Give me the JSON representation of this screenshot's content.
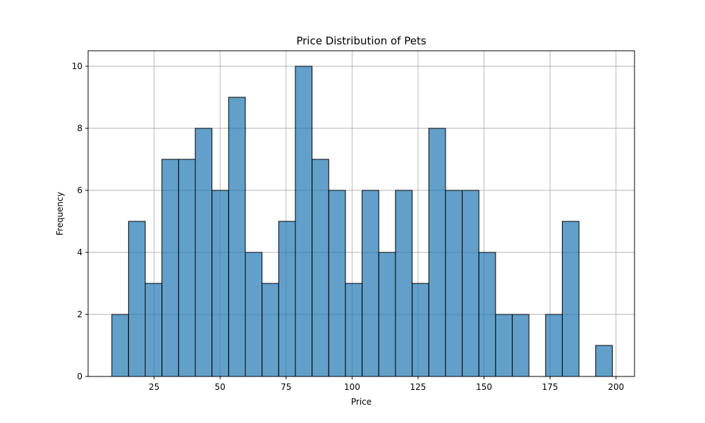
{
  "chart_data": {
    "type": "bar",
    "title": "Price Distribution of Pets",
    "xlabel": "Price",
    "ylabel": "Frequency",
    "xlim": [
      0,
      207
    ],
    "ylim": [
      0,
      10.5
    ],
    "grid": true,
    "x_ticks": [
      25,
      50,
      75,
      100,
      125,
      150,
      175,
      200
    ],
    "y_ticks": [
      0,
      2,
      4,
      6,
      8,
      10
    ],
    "bin_start": 9.0,
    "bin_width": 6.32,
    "values": [
      2,
      5,
      3,
      7,
      7,
      8,
      6,
      9,
      4,
      3,
      5,
      10,
      7,
      6,
      3,
      6,
      4,
      6,
      3,
      8,
      6,
      6,
      4,
      2,
      2,
      0,
      2,
      5,
      0,
      1
    ],
    "colors": {
      "bar_fill": "#1f77b4",
      "bar_edge": "#000000",
      "grid": "#b0b0b0"
    }
  }
}
